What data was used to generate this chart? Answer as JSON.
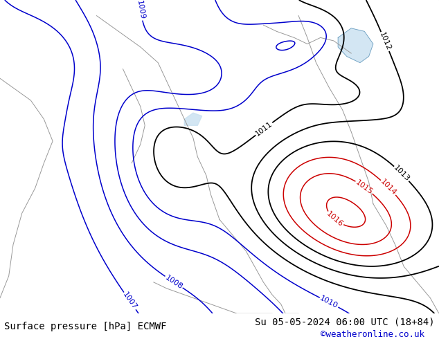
{
  "title_left": "Surface pressure [hPa] ECMWF",
  "title_right": "Su 05-05-2024 06:00 UTC (18+84)",
  "credit": "©weatheronline.co.uk",
  "bg_color": "#b5d9a0",
  "footer_bg": "#ffffff",
  "footer_text_color": "#000000",
  "credit_color": "#0000cc",
  "contour_blue_color": "#0000cc",
  "contour_black_color": "#000000",
  "contour_red_color": "#cc0000",
  "border_color": "#999999",
  "water_color": "#c8e0f0",
  "font_size_footer": 10,
  "font_size_labels": 8,
  "fig_width": 6.34,
  "fig_height": 4.9,
  "dpi": 100
}
